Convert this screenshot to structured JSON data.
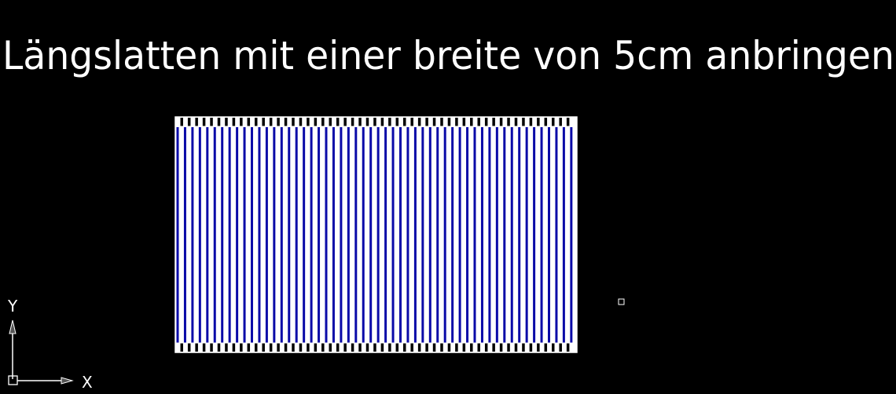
{
  "drawing": {
    "title": "Längslatten mit einer breite von 5cm anbringen",
    "colors": {
      "background": "#000000",
      "slat": "#ffffff",
      "stripe": "#0a0aa8",
      "text": "#ffffff"
    }
  },
  "ucs_icon": {
    "x_label": "X",
    "y_label": "Y"
  }
}
